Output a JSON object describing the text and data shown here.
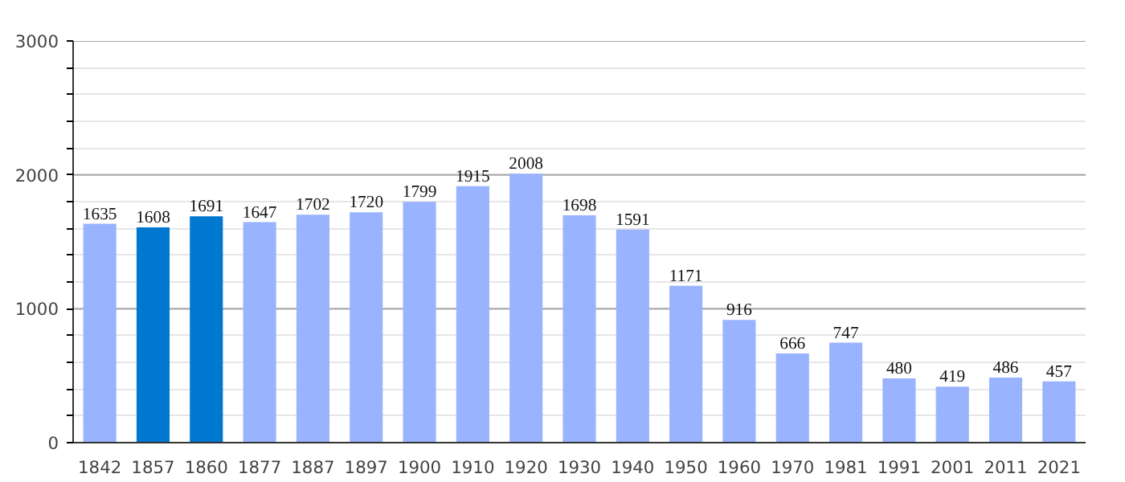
{
  "chart_data": {
    "type": "bar",
    "categories": [
      "1842",
      "1857",
      "1860",
      "1877",
      "1887",
      "1897",
      "1900",
      "1910",
      "1920",
      "1930",
      "1940",
      "1950",
      "1960",
      "1970",
      "1981",
      "1991",
      "2001",
      "2011",
      "2021"
    ],
    "values": [
      1635,
      1608,
      1691,
      1647,
      1702,
      1720,
      1799,
      1915,
      2008,
      1698,
      1591,
      1171,
      916,
      666,
      747,
      480,
      419,
      486,
      457
    ],
    "colors": [
      "#99b3ff",
      "#0078d0",
      "#0078d0",
      "#99b3ff",
      "#99b3ff",
      "#99b3ff",
      "#99b3ff",
      "#99b3ff",
      "#99b3ff",
      "#99b3ff",
      "#99b3ff",
      "#99b3ff",
      "#99b3ff",
      "#99b3ff",
      "#99b3ff",
      "#99b3ff",
      "#99b3ff",
      "#99b3ff",
      "#99b3ff"
    ],
    "ylim": [
      0,
      3000
    ],
    "yticks": [
      0,
      {
        "value": 200,
        "label": null
      },
      {
        "value": 400,
        "label": null
      },
      {
        "value": 600,
        "label": null
      },
      {
        "value": 800,
        "label": null
      },
      1000,
      {
        "value": 1200,
        "label": null
      },
      {
        "value": 1400,
        "label": null
      },
      {
        "value": 1600,
        "label": null
      },
      {
        "value": 1800,
        "label": null
      },
      2000,
      {
        "value": 2200,
        "label": null
      },
      {
        "value": 2400,
        "label": null
      },
      {
        "value": 2600,
        "label": null
      },
      {
        "value": 2800,
        "label": null
      },
      3000
    ],
    "grid": "y",
    "data_labels": true
  }
}
